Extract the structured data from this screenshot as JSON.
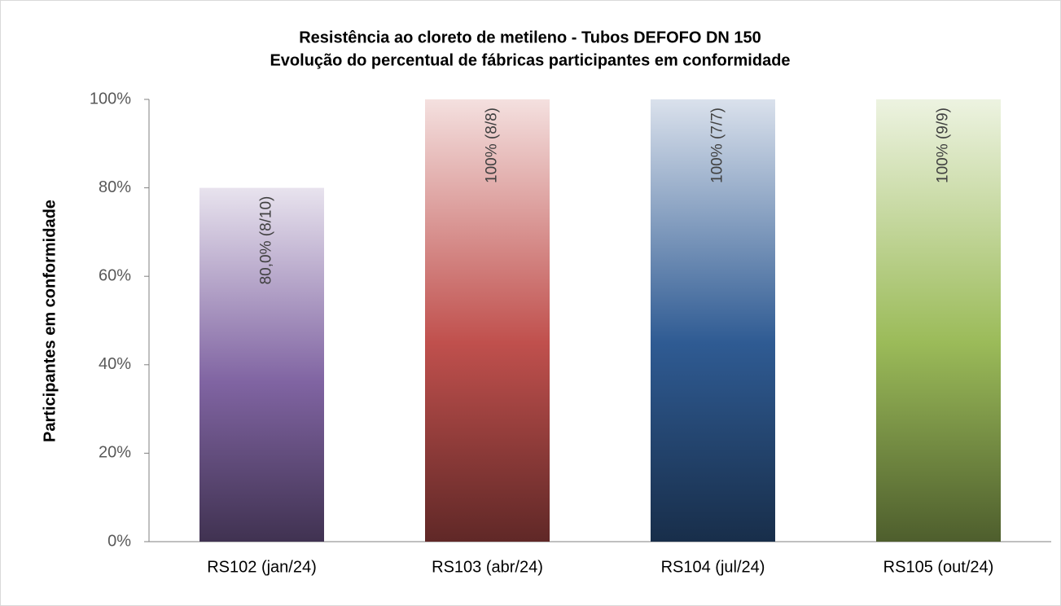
{
  "chart_data": {
    "type": "bar",
    "title": "Resistência ao cloreto de metileno - Tubos DEFOFO DN 150",
    "subtitle": "Evolução do percentual de fábricas participantes em conformidade",
    "y_label": "Participantes em conformidade",
    "categories": [
      "RS102  (jan/24)",
      "RS103 (abr/24)",
      "RS104 (jul/24)",
      "RS105 (out/24)"
    ],
    "values": [
      80,
      100,
      100,
      100
    ],
    "value_labels": [
      "80,0% (8/10)",
      "100% (8/8)",
      "100% (7/7)",
      "100% (9/9)"
    ],
    "colors": [
      "#8064a2",
      "#c0504d",
      "#2f5b93",
      "#9bbb59"
    ],
    "ylim": [
      0,
      100
    ],
    "yticks": [
      {
        "value": 0,
        "label": "0%"
      },
      {
        "value": 20,
        "label": "20%"
      },
      {
        "value": 40,
        "label": "40%"
      },
      {
        "value": 60,
        "label": "60%"
      },
      {
        "value": 80,
        "label": "80%"
      },
      {
        "value": 100,
        "label": "100%"
      }
    ],
    "grid": false
  }
}
